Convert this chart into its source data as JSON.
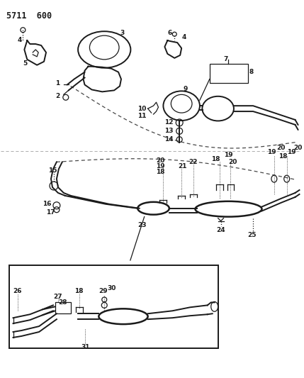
{
  "title": "5711  600",
  "bg_color": "#ffffff",
  "line_color": "#1a1a1a",
  "fig_width": 4.29,
  "fig_height": 5.33,
  "dpi": 100,
  "label_fontsize": 6.5,
  "title_fontsize": 8.5
}
